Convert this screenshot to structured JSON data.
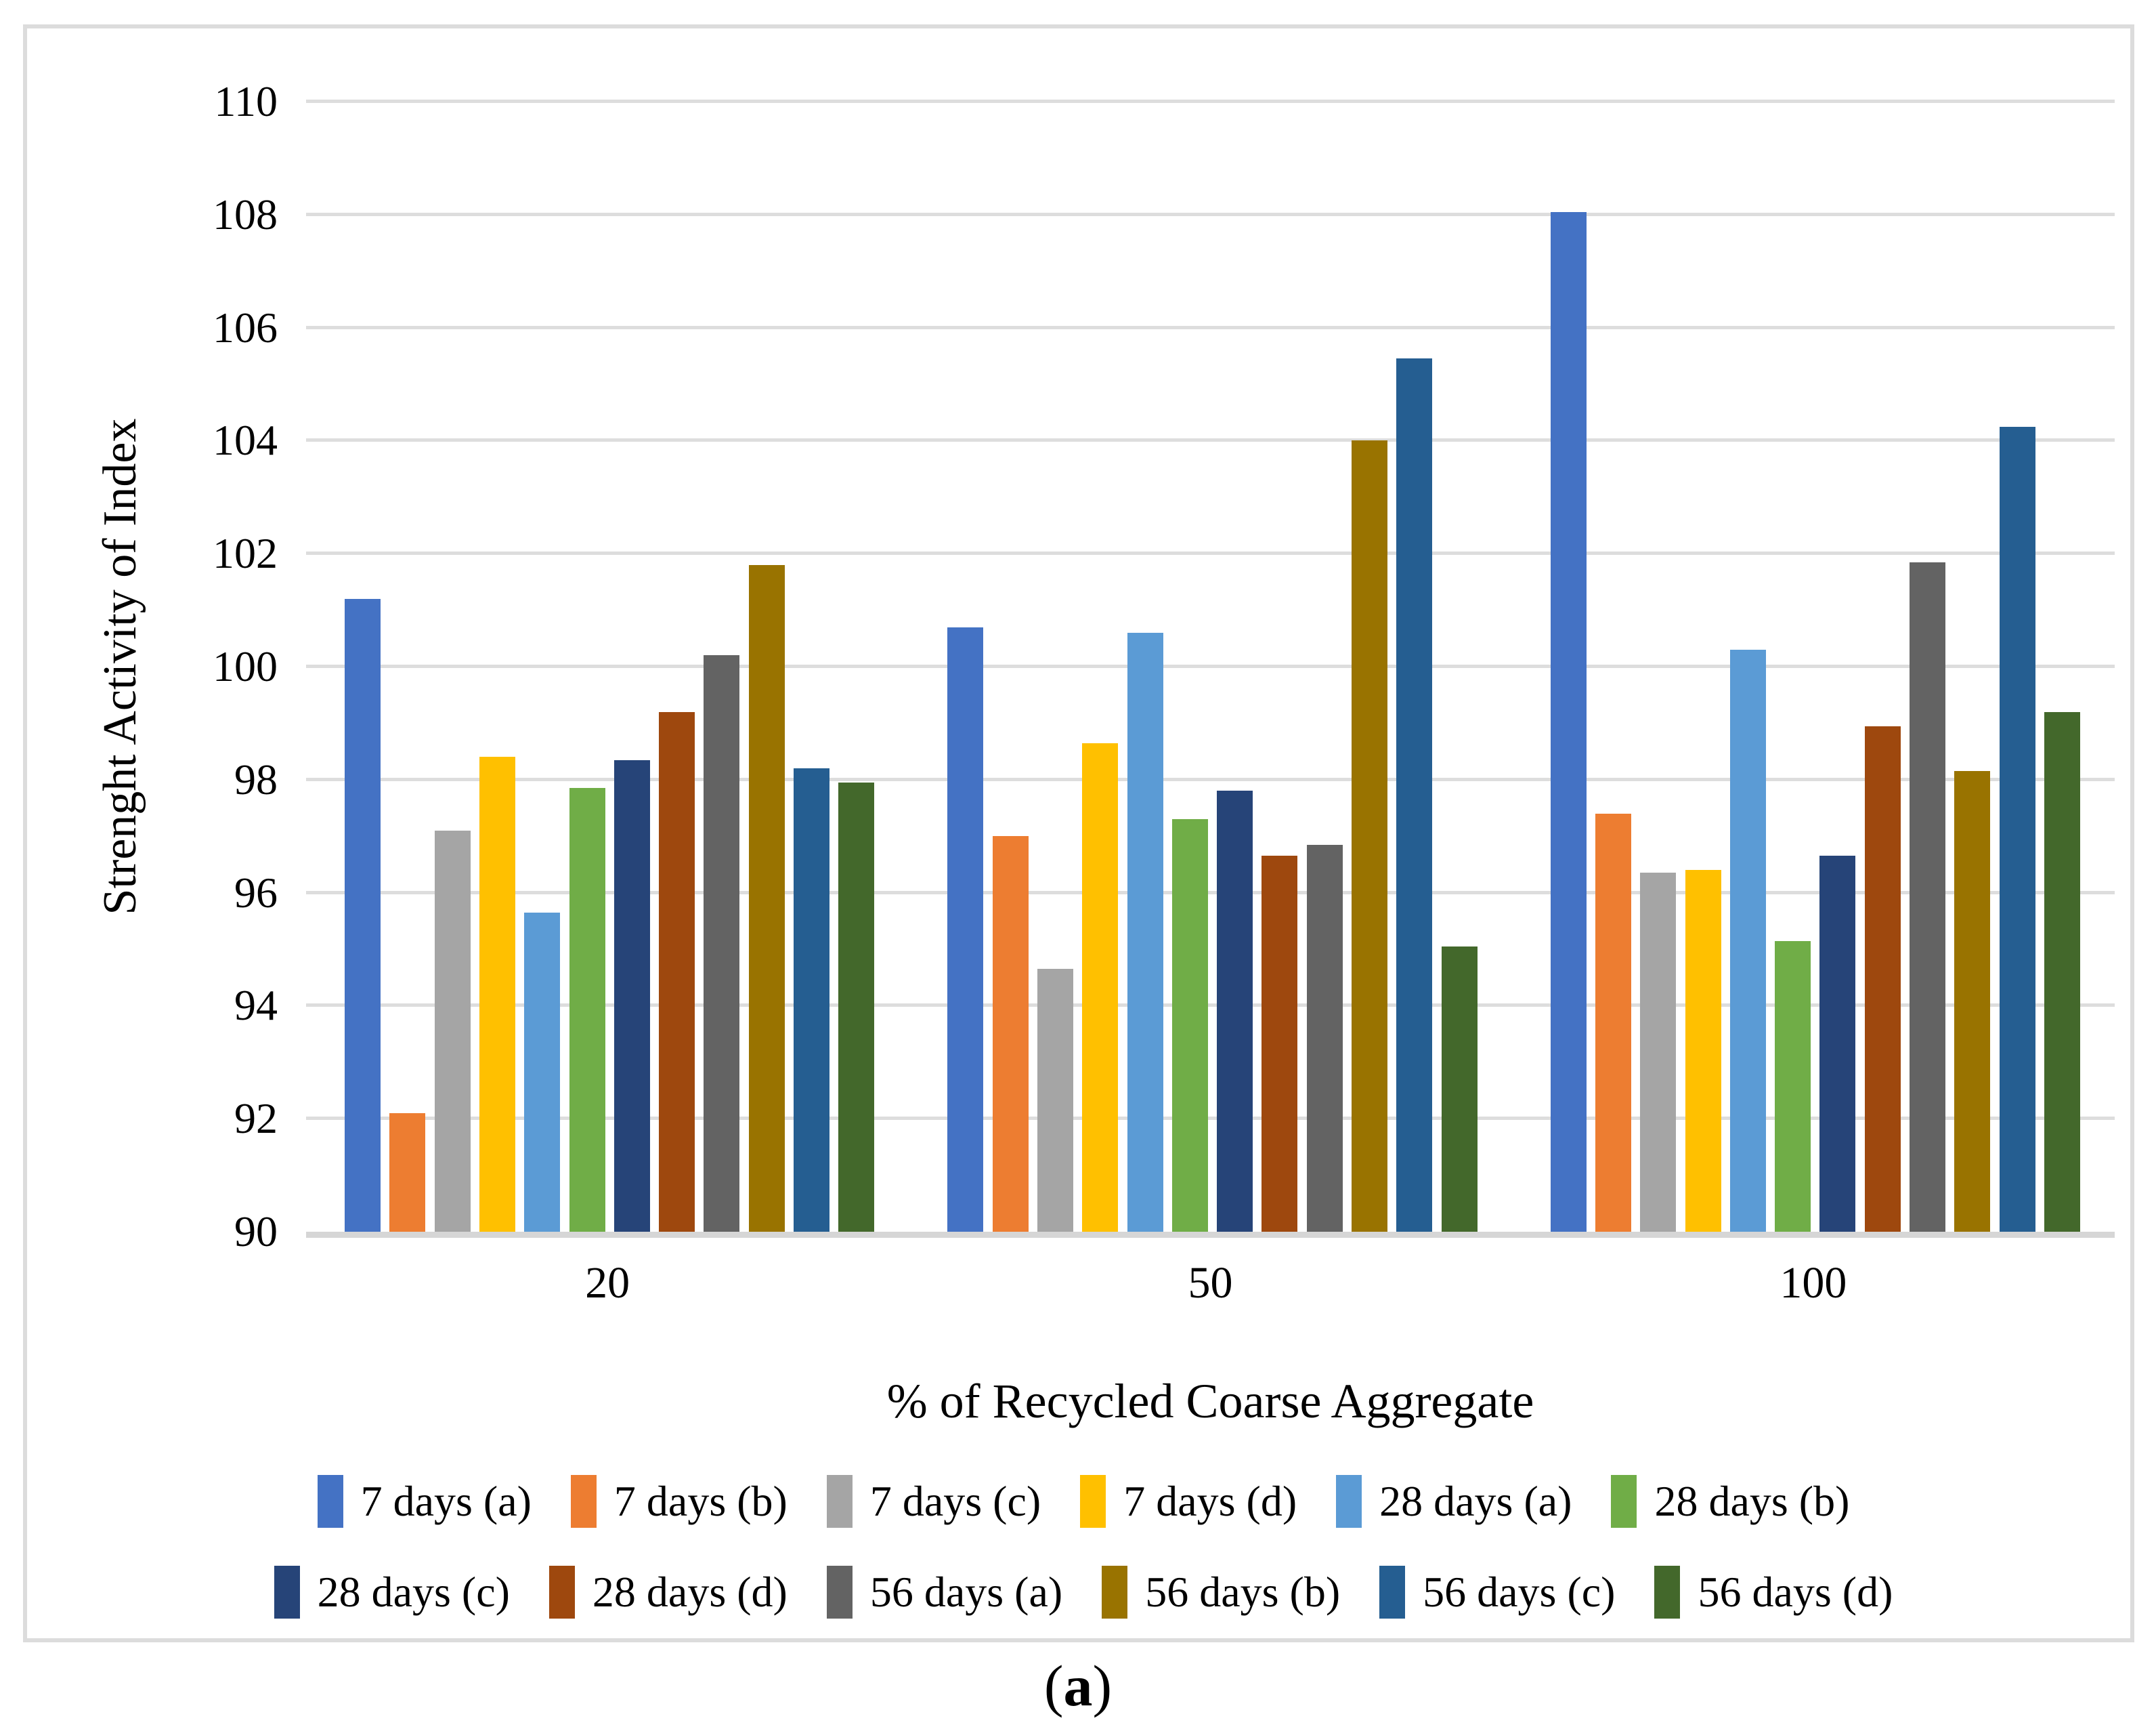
{
  "figure": {
    "caption": {
      "open": "(",
      "letter": "a",
      "close": ")"
    }
  },
  "chart_data": {
    "type": "bar",
    "title": "",
    "xlabel": "% of Recycled Coarse Aggregate",
    "ylabel": "Strenght Activity of Index",
    "ylim": [
      90,
      110
    ],
    "ytick_step": 2,
    "grid": true,
    "legend_position": "bottom",
    "legend_rows": 2,
    "categories": [
      "20",
      "50",
      "100"
    ],
    "series": [
      {
        "name": "7 days (a)",
        "color": "#4472C4",
        "values": [
          101.2,
          100.7,
          108.05
        ]
      },
      {
        "name": "7 days (b)",
        "color": "#ED7D31",
        "values": [
          92.1,
          97.0,
          97.4
        ]
      },
      {
        "name": "7 days (c)",
        "color": "#A5A5A5",
        "values": [
          97.1,
          94.65,
          96.35
        ]
      },
      {
        "name": "7 days (d)",
        "color": "#FFC000",
        "values": [
          98.4,
          98.65,
          96.4
        ]
      },
      {
        "name": "28 days (a)",
        "color": "#5B9BD5",
        "values": [
          95.65,
          100.6,
          100.3
        ]
      },
      {
        "name": "28 days (b)",
        "color": "#70AD47",
        "values": [
          97.85,
          97.3,
          95.15
        ]
      },
      {
        "name": "28 days (c)",
        "color": "#264478",
        "values": [
          98.35,
          97.8,
          96.65
        ]
      },
      {
        "name": "28 days (d)",
        "color": "#9E480E",
        "values": [
          99.2,
          96.65,
          98.95
        ]
      },
      {
        "name": "56 days (a)",
        "color": "#636363",
        "values": [
          100.2,
          96.85,
          101.85
        ]
      },
      {
        "name": "56 days (b)",
        "color": "#997300",
        "values": [
          101.8,
          104.0,
          98.15
        ]
      },
      {
        "name": "56 days (c)",
        "color": "#255E91",
        "values": [
          98.2,
          105.45,
          104.25
        ]
      },
      {
        "name": "56 days (d)",
        "color": "#43682B",
        "values": [
          97.95,
          95.05,
          99.2
        ]
      }
    ],
    "colors": {
      "gridline": "#dddddd",
      "axis_line": "#d6d6d6",
      "frame_border": "#dcdcdc",
      "text": "#000000"
    }
  }
}
